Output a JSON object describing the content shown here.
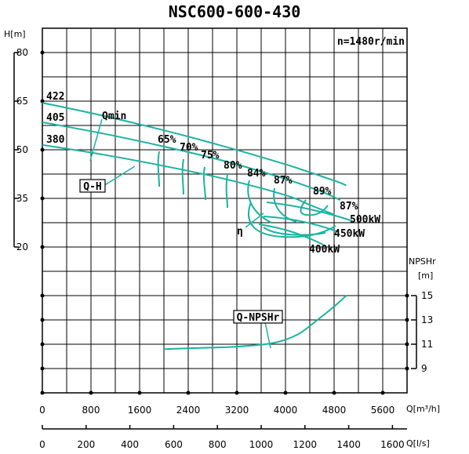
{
  "chart_data": {
    "type": "line",
    "title": "NSC600-600-430",
    "speed_label": "n=1480r/min",
    "head_axis": {
      "label": "H[m]",
      "ticks": [
        "80",
        "65",
        "50",
        "35",
        "20"
      ],
      "values": [
        80,
        65,
        50,
        35,
        20
      ]
    },
    "npsh_axis": {
      "label_top": "NPSHr",
      "label_unit": "[m]",
      "ticks": [
        "15",
        "13",
        "11",
        "9"
      ],
      "values": [
        15,
        13,
        11,
        9
      ]
    },
    "flow_m3h_axis": {
      "label": "Q[m³/h]",
      "ticks": [
        "0",
        "800",
        "1600",
        "2400",
        "3200",
        "4000",
        "4800",
        "5600"
      ],
      "values": [
        0,
        800,
        1600,
        2400,
        3200,
        4000,
        4800,
        5600
      ]
    },
    "flow_ls_axis": {
      "label": "Q[l/s]",
      "ticks": [
        "0",
        "200",
        "400",
        "600",
        "800",
        "1000",
        "1200",
        "1400",
        "1600"
      ],
      "values": [
        0,
        200,
        400,
        600,
        800,
        1000,
        1200,
        1400,
        1600
      ]
    },
    "qh_curves": [
      {
        "diameter": "422",
        "points": [
          [
            0,
            64.5
          ],
          [
            1000,
            60.5
          ],
          [
            2000,
            56
          ],
          [
            3000,
            51
          ],
          [
            4000,
            45.5
          ],
          [
            4800,
            40.5
          ],
          [
            5000,
            39
          ]
        ]
      },
      {
        "diameter": "405",
        "points": [
          [
            0,
            58.5
          ],
          [
            1000,
            55
          ],
          [
            2000,
            51
          ],
          [
            3000,
            46.5
          ],
          [
            4000,
            41
          ],
          [
            4600,
            37
          ],
          [
            4900,
            34.5
          ]
        ]
      },
      {
        "diameter": "380",
        "points": [
          [
            0,
            51.5
          ],
          [
            1000,
            48.5
          ],
          [
            2000,
            45
          ],
          [
            3000,
            41
          ],
          [
            4000,
            36
          ],
          [
            4400,
            33
          ],
          [
            4800,
            30
          ]
        ]
      }
    ],
    "efficiency_labels": [
      "65%",
      "70%",
      "75%",
      "80%",
      "84%",
      "87%",
      "89%",
      "87%"
    ],
    "power_labels": [
      "500kW",
      "450kW",
      "400kW"
    ],
    "npsh_curve": {
      "points": [
        [
          2000,
          10.6
        ],
        [
          2600,
          10.7
        ],
        [
          3200,
          10.8
        ],
        [
          3800,
          11.1
        ],
        [
          4200,
          11.8
        ],
        [
          4500,
          12.9
        ],
        [
          4800,
          14.1
        ],
        [
          5000,
          15
        ]
      ]
    },
    "annotations": {
      "qmin": "Qmin",
      "qh": "Q-H",
      "eta": "η",
      "qnpsh": "Q-NPSHr"
    }
  }
}
